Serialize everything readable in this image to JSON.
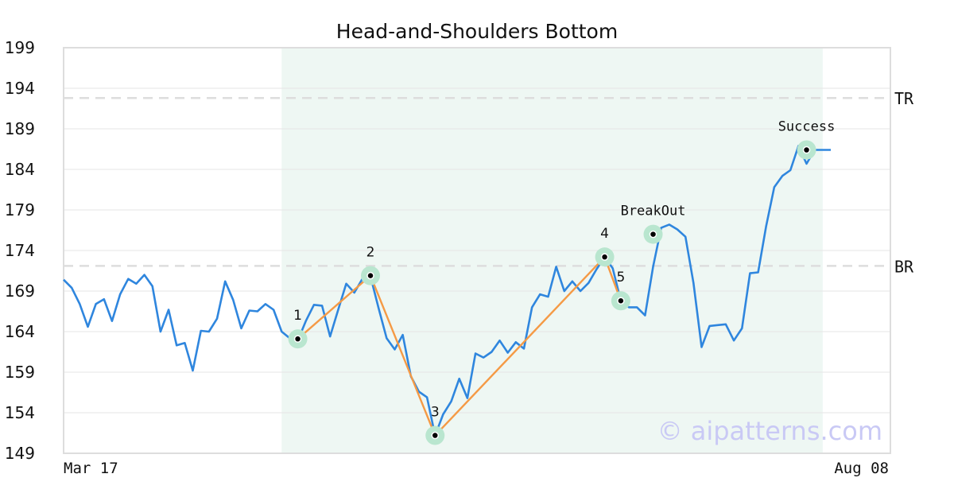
{
  "colors": {
    "price_line": "#2f86de",
    "pattern_line": "#f59a45",
    "highlight_region": "#eef7f3",
    "point_halo": "#b9e6cf",
    "level_line": "#dddddd",
    "grid": "#e6e6e6",
    "frame": "#dddddd",
    "watermark": "#c9c9f5"
  },
  "chart_data": {
    "type": "line",
    "title": "Head-and-Shoulders Bottom",
    "xlabel": "",
    "ylabel": "",
    "ylim": [
      149,
      199
    ],
    "yticks": [
      149,
      154,
      159,
      164,
      169,
      174,
      179,
      184,
      189,
      194,
      199
    ],
    "x_labels": {
      "start": "Mar 17",
      "end": "Aug 08"
    },
    "grid": true,
    "watermark": "© aipatterns.com",
    "series": [
      {
        "values": [
          170.4,
          169.4,
          167.4,
          164.6,
          167.4,
          168.0,
          165.3,
          168.6,
          170.5,
          169.9,
          171.0,
          169.6,
          164.0,
          166.7,
          162.3,
          162.6,
          159.2,
          164.1,
          164.0,
          165.6,
          170.2,
          167.9,
          164.4,
          166.6,
          166.5,
          167.4,
          166.7,
          164.0,
          163.2,
          162.9,
          165.3,
          167.3,
          167.2,
          163.4,
          166.7,
          169.9,
          168.8,
          170.5,
          170.8,
          166.9,
          163.2,
          161.8,
          163.6,
          158.5,
          156.6,
          155.9,
          151.2,
          153.8,
          155.4,
          158.2,
          155.8,
          161.3,
          160.8,
          161.5,
          162.9,
          161.4,
          162.7,
          161.9,
          167.0,
          168.6,
          168.3,
          172.0,
          169.0,
          170.2,
          169.0,
          170.0,
          171.7,
          173.2,
          171.8,
          167.8,
          167.0,
          167.0,
          166.0,
          172.0,
          176.8,
          177.2,
          176.6,
          175.7,
          170.0,
          162.1,
          164.7,
          164.8,
          164.9,
          162.9,
          164.4,
          171.2,
          171.3,
          177.0,
          181.8,
          183.2,
          183.9,
          186.9,
          184.7,
          186.4,
          186.4,
          186.4
        ]
      }
    ],
    "highlight_range": {
      "start_index": 27,
      "end_index": 94
    },
    "levels": [
      {
        "label": "TR",
        "value": 192.8
      },
      {
        "label": "BR",
        "value": 172.1
      }
    ],
    "pattern_points": [
      {
        "label": "1",
        "index": 29,
        "value": 163.1
      },
      {
        "label": "2",
        "index": 38,
        "value": 170.9
      },
      {
        "label": "3",
        "index": 46,
        "value": 151.2
      },
      {
        "label": "4",
        "index": 67,
        "value": 173.2
      },
      {
        "label": "5",
        "index": 69,
        "value": 167.8
      }
    ],
    "annotations": [
      {
        "label": "BreakOut",
        "index": 73,
        "value": 176.0
      },
      {
        "label": "Success",
        "index": 92,
        "value": 186.4
      }
    ]
  }
}
